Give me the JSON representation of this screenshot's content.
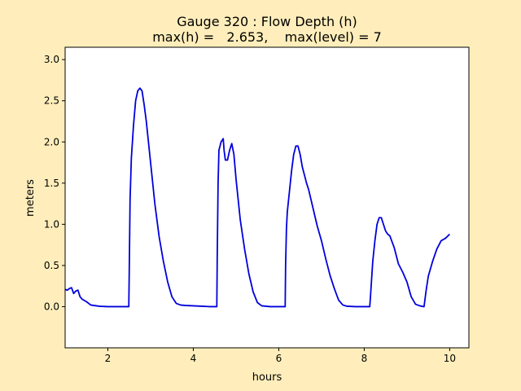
{
  "figure": {
    "background": "#ffeebb",
    "axes_background": "#ffffff"
  },
  "chart_data": {
    "type": "line",
    "title_line1": "Gauge 320 : Flow Depth (h)",
    "title_line2": "max(h) =   2.653,    max(level) = 7",
    "xlabel": "hours",
    "ylabel": "meters",
    "xlim": [
      1.0,
      10.45
    ],
    "ylim": [
      -0.5,
      3.15
    ],
    "xticks": [
      2,
      4,
      6,
      8,
      10
    ],
    "xtick_labels": [
      "2",
      "4",
      "6",
      "8",
      "10"
    ],
    "yticks": [
      0.0,
      0.5,
      1.0,
      1.5,
      2.0,
      2.5,
      3.0
    ],
    "ytick_labels": [
      "0.0",
      "0.5",
      "1.0",
      "1.5",
      "2.0",
      "2.5",
      "3.0"
    ],
    "grid": false,
    "series": [
      {
        "color": "#0000dd",
        "x": [
          1.0,
          1.05,
          1.1,
          1.15,
          1.2,
          1.25,
          1.3,
          1.35,
          1.4,
          1.5,
          1.6,
          1.8,
          2.0,
          2.2,
          2.49,
          2.5,
          2.52,
          2.55,
          2.6,
          2.65,
          2.7,
          2.75,
          2.8,
          2.85,
          2.9,
          3.0,
          3.1,
          3.2,
          3.3,
          3.4,
          3.5,
          3.6,
          3.7,
          3.8,
          4.0,
          4.2,
          4.4,
          4.55,
          4.56,
          4.58,
          4.6,
          4.65,
          4.7,
          4.72,
          4.75,
          4.8,
          4.85,
          4.9,
          4.95,
          5.0,
          5.05,
          5.1,
          5.2,
          5.3,
          5.4,
          5.5,
          5.6,
          5.7,
          5.8,
          6.0,
          6.15,
          6.16,
          6.18,
          6.2,
          6.25,
          6.3,
          6.35,
          6.4,
          6.45,
          6.5,
          6.55,
          6.6,
          6.65,
          6.7,
          6.8,
          6.9,
          7.0,
          7.1,
          7.2,
          7.3,
          7.4,
          7.5,
          7.6,
          7.8,
          8.0,
          8.13,
          8.15,
          8.2,
          8.25,
          8.3,
          8.35,
          8.4,
          8.45,
          8.5,
          8.55,
          8.6,
          8.7,
          8.8,
          8.9,
          9.0,
          9.1,
          9.2,
          9.3,
          9.4,
          9.42,
          9.45,
          9.5,
          9.6,
          9.7,
          9.8,
          9.9,
          10.0
        ],
        "y": [
          0.21,
          0.2,
          0.22,
          0.23,
          0.16,
          0.19,
          0.2,
          0.12,
          0.09,
          0.06,
          0.02,
          0.005,
          0.0,
          0.0,
          0.0,
          0.4,
          1.3,
          1.8,
          2.2,
          2.5,
          2.62,
          2.653,
          2.62,
          2.45,
          2.25,
          1.75,
          1.25,
          0.85,
          0.55,
          0.3,
          0.12,
          0.04,
          0.02,
          0.015,
          0.01,
          0.005,
          0.0,
          0.0,
          0.6,
          1.5,
          1.9,
          2.0,
          2.04,
          1.9,
          1.78,
          1.78,
          1.9,
          1.98,
          1.85,
          1.55,
          1.3,
          1.05,
          0.7,
          0.4,
          0.18,
          0.05,
          0.01,
          0.005,
          0.0,
          0.0,
          0.0,
          0.5,
          0.95,
          1.15,
          1.4,
          1.65,
          1.85,
          1.95,
          1.95,
          1.85,
          1.7,
          1.6,
          1.5,
          1.42,
          1.2,
          0.98,
          0.8,
          0.58,
          0.38,
          0.22,
          0.08,
          0.02,
          0.005,
          0.0,
          0.0,
          0.0,
          0.15,
          0.55,
          0.8,
          1.0,
          1.08,
          1.08,
          1.0,
          0.92,
          0.88,
          0.86,
          0.72,
          0.52,
          0.42,
          0.3,
          0.12,
          0.03,
          0.01,
          0.0,
          0.08,
          0.2,
          0.37,
          0.55,
          0.7,
          0.8,
          0.83,
          0.88
        ]
      }
    ]
  }
}
